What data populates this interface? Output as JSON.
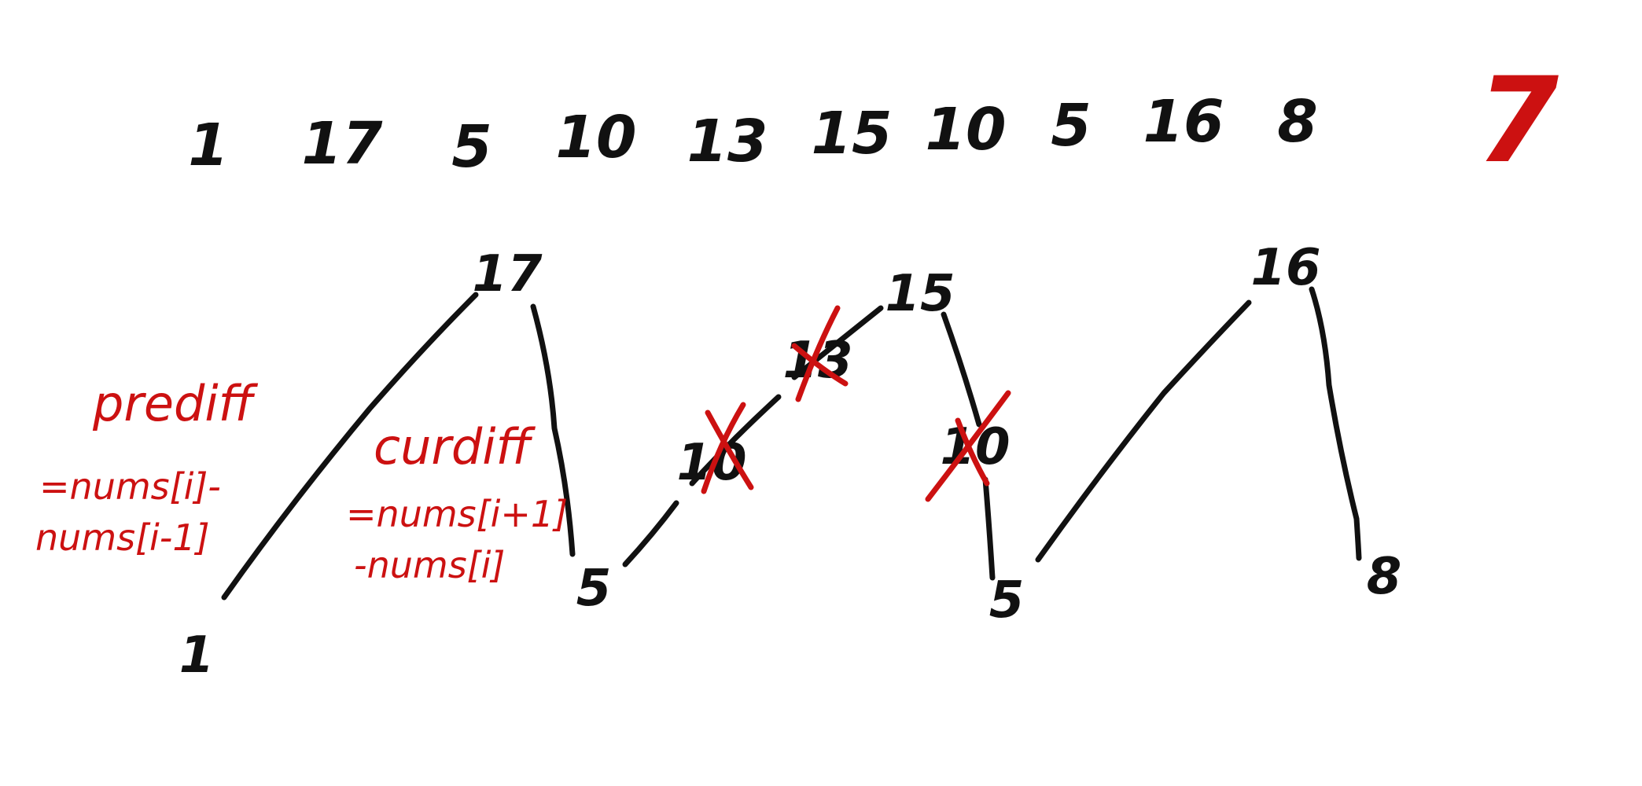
{
  "sequence": [
    "1",
    "17",
    "5",
    "10",
    "13",
    "15",
    "10",
    "5",
    "16",
    "8"
  ],
  "answer": "7",
  "nodes": {
    "n1": "1",
    "n17": "17",
    "n5a": "5",
    "n10a": "10",
    "n13": "13",
    "n15": "15",
    "n10b": "10",
    "n5b": "5",
    "n16": "16",
    "n8": "8"
  },
  "notes": {
    "prediff_title": "prediff",
    "prediff_line1": "=nums[i]-",
    "prediff_line2": "nums[i-1]",
    "curdiff_title": "curdiff",
    "curdiff_line1": "=nums[i+1]",
    "curdiff_line2": "-nums[i]"
  },
  "colors": {
    "ink": "#111111",
    "annotation": "#cc1111",
    "background": "#ffffff"
  }
}
